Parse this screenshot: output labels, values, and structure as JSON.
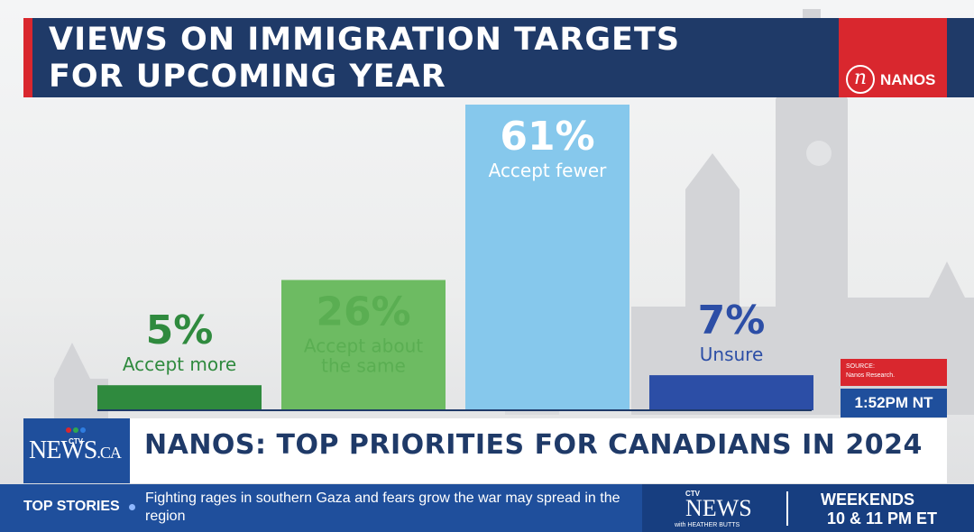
{
  "title": {
    "line1": "VIEWS ON IMMIGRATION TARGETS",
    "line2": "FOR UPCOMING YEAR"
  },
  "brand": {
    "name": "NANOS",
    "logo_letter": "n"
  },
  "colors": {
    "navy": "#1f3a68",
    "red": "#d9272e",
    "blue": "#1f4f9c"
  },
  "chart_data": {
    "type": "bar",
    "categories": [
      "Accept more",
      "Accept about the same",
      "Accept fewer",
      "Unsure"
    ],
    "category_lines": [
      [
        "Accept more"
      ],
      [
        "Accept about",
        "the same"
      ],
      [
        "Accept fewer"
      ],
      [
        "Unsure"
      ]
    ],
    "values": [
      5,
      26,
      61,
      7
    ],
    "value_labels": [
      "5%",
      "26%",
      "61%",
      "7%"
    ],
    "colors": [
      "#2f8a3e",
      "#6dbb62",
      "#86c8ec",
      "#2c4ea6"
    ],
    "label_colors": [
      "#2f8a3e",
      "#5aae52",
      "#ffffff",
      "#2c4ea6"
    ],
    "unit": "%",
    "ylim": [
      0,
      61
    ],
    "grid": false,
    "legend": "none"
  },
  "source": {
    "label": "SOURCE:",
    "text": "Nanos Research."
  },
  "timestamp": "1:52PM NT",
  "lower_third": {
    "network_logo": {
      "mini": "CTV",
      "main": "NEWS",
      "suffix": ".CA"
    },
    "headline": "NANOS: TOP PRIORITIES FOR CANADIANS IN 2024"
  },
  "ticker": {
    "label": "TOP STORIES",
    "text": "Fighting rages in southern Gaza and fears grow the war may spread in the region"
  },
  "promo": {
    "ctv": "CTV",
    "news": "NEWS",
    "host": "with HEATHER BUTTS",
    "when": "WEEKENDS",
    "time": "10 & 11 PM ET"
  }
}
